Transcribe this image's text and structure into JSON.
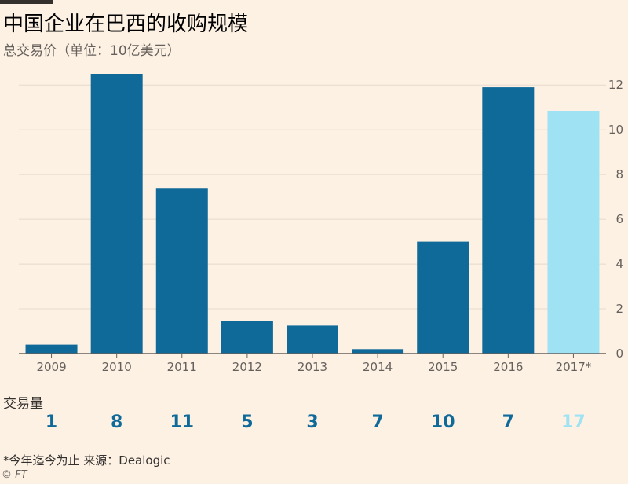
{
  "header": {
    "title": "中国企业在巴西的收购规模",
    "subtitle": "总交易价（单位：10亿美元）"
  },
  "chart_data": {
    "type": "bar",
    "categories": [
      "2009",
      "2010",
      "2011",
      "2012",
      "2013",
      "2014",
      "2015",
      "2016",
      "2017*"
    ],
    "values": [
      0.4,
      12.5,
      7.4,
      1.45,
      1.25,
      0.2,
      5.0,
      11.9,
      10.85
    ],
    "title": "中国企业在巴西的收购规模",
    "subtitle": "总交易价（单位：10亿美元）",
    "xlabel": "",
    "ylabel": "",
    "ylim": [
      0,
      12.5
    ],
    "yticks": [
      0,
      2,
      4,
      6,
      8,
      10,
      12
    ],
    "y_axis_side": "right",
    "grid": true,
    "colors": {
      "default": "#0f6a99",
      "highlight": "#9ee2f3",
      "highlight_category": "2017*",
      "gridline": "#e6d9ce",
      "axis": "#66605c"
    }
  },
  "deals": {
    "label": "交易量",
    "values": [
      "1",
      "8",
      "11",
      "5",
      "3",
      "7",
      "10",
      "7",
      "17"
    ]
  },
  "footer": {
    "note": "*今年迄今为止  来源：Dealogic",
    "copyright": "© FT"
  }
}
